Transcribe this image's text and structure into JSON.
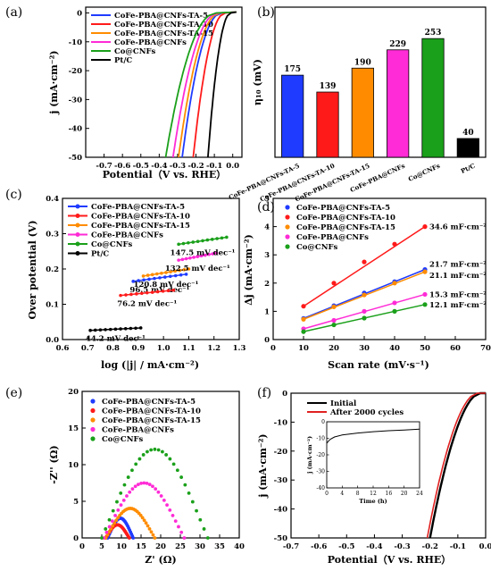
{
  "chart_data": [
    {
      "panel": "(a)",
      "type": "line",
      "xlabel": "Potential（V vs. RHE）",
      "ylabel": "j (mA·cm⁻²)",
      "xlim": [
        -0.8,
        0.05
      ],
      "ylim": [
        -50,
        2
      ],
      "xticks": [
        -0.7,
        -0.6,
        -0.5,
        -0.4,
        -0.3,
        -0.2,
        -0.1,
        0.0
      ],
      "yticks": [
        0,
        -10,
        -20,
        -30,
        -40,
        -50
      ],
      "grid": false,
      "legend_position": "top-left",
      "series": [
        {
          "name": "CoFe-PBA@CNFs-TA-5",
          "color": "#1f3bff",
          "onset": -0.06,
          "at_50": -0.275
        },
        {
          "name": "CoFe-PBA@CNFs-TA-10",
          "color": "#ff1a1a",
          "onset": -0.04,
          "at_50": -0.215
        },
        {
          "name": "CoFe-PBA@CNFs-TA-15",
          "color": "#ff8c00",
          "onset": -0.07,
          "at_50": -0.295
        },
        {
          "name": "CoFe-PBA@CNFs",
          "color": "#ff2bd6",
          "onset": -0.08,
          "at_50": -0.325
        },
        {
          "name": "Co@CNFs",
          "color": "#1aa01a",
          "onset": -0.09,
          "at_50": -0.365
        },
        {
          "name": "Pt/C",
          "color": "#000000",
          "onset": -0.01,
          "at_50": -0.135
        }
      ]
    },
    {
      "panel": "(b)",
      "type": "bar",
      "ylabel": "η₁₀ (mV)",
      "ylim": [
        0,
        320
      ],
      "categories": [
        "CoFe-PBA@CNFs-TA-5",
        "CoFe-PBA@CNFs-TA-10",
        "CoFe-PBA@CNFs-TA-15",
        "CoFe-PBA@CNFs",
        "Co@CNFs",
        "Pt/C"
      ],
      "values": [
        175,
        139,
        190,
        229,
        253,
        40
      ],
      "value_labels": [
        "175",
        "139",
        "190",
        "229",
        "253",
        "40"
      ],
      "colors": [
        "#1f3bff",
        "#ff1a1a",
        "#ff8c00",
        "#ff2bd6",
        "#1aa01a",
        "#000000"
      ]
    },
    {
      "panel": "(c)",
      "type": "line",
      "xlabel": "log (|j| / mA·cm⁻²)",
      "ylabel": "Over potential (V)",
      "xlim": [
        0.6,
        1.3
      ],
      "ylim": [
        0.0,
        0.4
      ],
      "xticks": [
        0.6,
        0.7,
        0.8,
        0.9,
        1.0,
        1.1,
        1.2,
        1.3
      ],
      "yticks": [
        0.0,
        0.1,
        0.2,
        0.3,
        0.4
      ],
      "legend_position": "top-left",
      "series": [
        {
          "name": "CoFe-PBA@CNFs-TA-5",
          "color": "#1f3bff",
          "x": [
            0.88,
            1.09
          ],
          "y": [
            0.165,
            0.185
          ],
          "annotation": "96.5 mV dec⁻¹"
        },
        {
          "name": "CoFe-PBA@CNFs-TA-10",
          "color": "#ff1a1a",
          "x": [
            0.83,
            1.04
          ],
          "y": [
            0.125,
            0.14
          ],
          "annotation": "76.2 mV dec⁻¹"
        },
        {
          "name": "CoFe-PBA@CNFs-TA-15",
          "color": "#ff8c00",
          "x": [
            0.92,
            1.1
          ],
          "y": [
            0.18,
            0.2
          ],
          "annotation": "120.8 mV dec⁻¹"
        },
        {
          "name": "CoFe-PBA@CNFs",
          "color": "#ff2bd6",
          "x": [
            1.06,
            1.21
          ],
          "y": [
            0.225,
            0.245
          ],
          "annotation": "132.5 mV dec⁻¹"
        },
        {
          "name": "Co@CNFs",
          "color": "#1aa01a",
          "x": [
            1.06,
            1.25
          ],
          "y": [
            0.27,
            0.29
          ],
          "annotation": "147.5 mV dec⁻¹"
        },
        {
          "name": "Pt/C",
          "color": "#000000",
          "x": [
            0.71,
            0.91
          ],
          "y": [
            0.026,
            0.033
          ],
          "annotation": "44.2 mV dec⁻¹"
        }
      ]
    },
    {
      "panel": "(d)",
      "type": "scatter",
      "xlabel": "Scan rate (mV·s⁻¹)",
      "ylabel": "Δj (mA·cm⁻²)",
      "xlim": [
        0,
        70
      ],
      "ylim": [
        0,
        5
      ],
      "xticks": [
        0,
        10,
        20,
        30,
        40,
        50,
        60,
        70
      ],
      "yticks": [
        0,
        1,
        2,
        3,
        4,
        5
      ],
      "legend_position": "top-left",
      "x": [
        10,
        20,
        30,
        40,
        50
      ],
      "series": [
        {
          "name": "CoFe-PBA@CNFs-TA-5",
          "color": "#1f3bff",
          "y": [
            0.75,
            1.2,
            1.65,
            2.05,
            2.48
          ],
          "annotation": "21.7 mF·cm⁻²"
        },
        {
          "name": "CoFe-PBA@CNFs-TA-10",
          "color": "#ff1a1a",
          "y": [
            1.18,
            2.0,
            2.75,
            3.38,
            4.0
          ],
          "annotation": "34.6 mF·cm⁻²"
        },
        {
          "name": "CoFe-PBA@CNFs-TA-15",
          "color": "#ff8c00",
          "y": [
            0.72,
            1.16,
            1.58,
            2.0,
            2.4
          ],
          "annotation": "21.1 mF·cm⁻²"
        },
        {
          "name": "CoFe-PBA@CNFs",
          "color": "#ff2bd6",
          "y": [
            0.38,
            0.68,
            1.0,
            1.3,
            1.6
          ],
          "annotation": "15.3 mF·cm⁻²"
        },
        {
          "name": "Co@CNFs",
          "color": "#1aa01a",
          "y": [
            0.28,
            0.52,
            0.76,
            1.0,
            1.24
          ],
          "annotation": "12.1 mF·cm⁻²"
        }
      ]
    },
    {
      "panel": "(e)",
      "type": "scatter",
      "xlabel": "Z' (Ω)",
      "ylabel": "-Z'' (Ω)",
      "xlim": [
        0,
        40
      ],
      "ylim": [
        0,
        20
      ],
      "xticks": [
        0,
        5,
        10,
        15,
        20,
        25,
        30,
        35,
        40
      ],
      "yticks": [
        0,
        5,
        10,
        15,
        20
      ],
      "legend_position": "top-left",
      "series": [
        {
          "name": "CoFe-PBA@CNFs-TA-5",
          "color": "#1f3bff",
          "z_start": 6.5,
          "z_end": 13.0,
          "peak": 2.4
        },
        {
          "name": "CoFe-PBA@CNFs-TA-10",
          "color": "#ff1a1a",
          "z_start": 6.0,
          "z_end": 12.0,
          "peak": 1.6
        },
        {
          "name": "CoFe-PBA@CNFs-TA-15",
          "color": "#ff8c00",
          "z_start": 6.0,
          "z_end": 18.5,
          "peak": 3.6
        },
        {
          "name": "CoFe-PBA@CNFs",
          "color": "#ff2bd6",
          "z_start": 5.5,
          "z_end": 26.0,
          "peak": 6.7
        },
        {
          "name": "Co@CNFs",
          "color": "#1aa01a",
          "z_start": 5.0,
          "z_end": 32.0,
          "peak": 10.8
        }
      ]
    },
    {
      "panel": "(f)",
      "type": "line",
      "xlabel": "Potential（V vs. RHE）",
      "ylabel": "j (mA·cm⁻²)",
      "xlim": [
        -0.7,
        0.0
      ],
      "ylim": [
        -50,
        0
      ],
      "xticks": [
        -0.7,
        -0.6,
        -0.5,
        -0.4,
        -0.3,
        -0.2,
        -0.1,
        0.0
      ],
      "yticks": [
        0,
        -10,
        -20,
        -30,
        -40,
        -50
      ],
      "legend_position": "top-left",
      "series": [
        {
          "name": "Initial",
          "color": "#000000",
          "onset": -0.02,
          "at_50": -0.2
        },
        {
          "name": "After 2000 cycles",
          "color": "#e02020",
          "onset": -0.03,
          "at_50": -0.21
        }
      ],
      "inset": {
        "xlabel": "Time (h)",
        "ylabel": "j (mA·cm⁻²)",
        "xlim": [
          0,
          24
        ],
        "ylim": [
          -40,
          0
        ],
        "xticks": [
          0,
          4,
          8,
          12,
          16,
          20,
          24
        ],
        "yticks": [
          0,
          -10,
          -20,
          -30,
          -40
        ],
        "x": [
          0,
          0.5,
          1,
          2,
          4,
          8,
          12,
          16,
          20,
          24
        ],
        "y": [
          -13,
          -11.5,
          -10.5,
          -9.2,
          -8,
          -6.8,
          -6,
          -5.4,
          -5,
          -4.5
        ]
      }
    }
  ]
}
